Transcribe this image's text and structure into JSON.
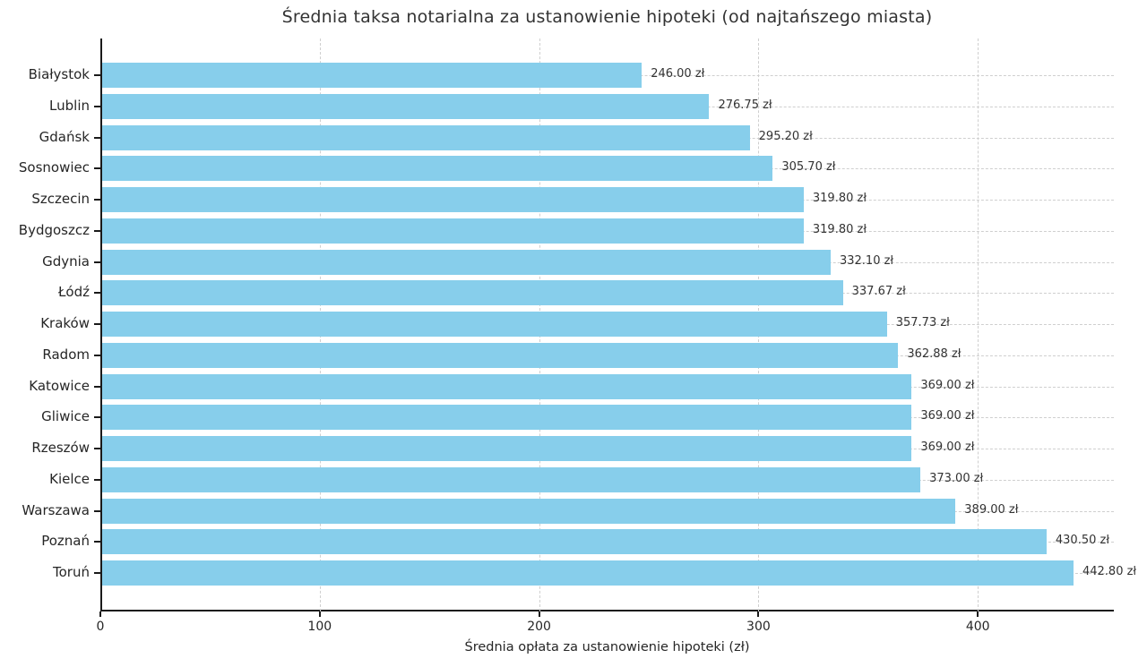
{
  "chart_data": {
    "type": "bar",
    "orientation": "horizontal",
    "title": "Średnia taksa notarialna za ustanowienie hipoteki (od najtańszego miasta)",
    "xlabel": "Średnia opłata za ustanowienie hipoteki (zł)",
    "ylabel": "",
    "categories": [
      "Białystok",
      "Lublin",
      "Gdańsk",
      "Sosnowiec",
      "Szczecin",
      "Bydgoszcz",
      "Gdynia",
      "Łódź",
      "Kraków",
      "Radom",
      "Katowice",
      "Gliwice",
      "Rzeszów",
      "Kielce",
      "Warszawa",
      "Poznań",
      "Toruń"
    ],
    "values": [
      246.0,
      276.75,
      295.2,
      305.7,
      319.8,
      319.8,
      332.1,
      337.67,
      357.73,
      362.88,
      369.0,
      369.0,
      369.0,
      373.0,
      389.0,
      430.5,
      442.8
    ],
    "value_labels": [
      "246.00 zł",
      "276.75 zł",
      "295.20 zł",
      "305.70 zł",
      "319.80 zł",
      "319.80 zł",
      "332.10 zł",
      "337.67 zł",
      "357.73 zł",
      "362.88 zł",
      "369.00 zł",
      "369.00 zł",
      "369.00 zł",
      "373.00 zł",
      "389.00 zł",
      "430.50 zł",
      "442.80 zł"
    ],
    "xlim": [
      0,
      462
    ],
    "xticks": [
      0,
      100,
      200,
      300,
      400
    ],
    "grid": "dashed, both axes, below bars",
    "legend": "none",
    "sort_order": "ascending"
  },
  "colors": {
    "bar": "#87CEEB",
    "grid": "#cfcfcf",
    "spine": "#1a1a1a",
    "text": "#262626",
    "title": "#333333",
    "background": "#ffffff"
  }
}
